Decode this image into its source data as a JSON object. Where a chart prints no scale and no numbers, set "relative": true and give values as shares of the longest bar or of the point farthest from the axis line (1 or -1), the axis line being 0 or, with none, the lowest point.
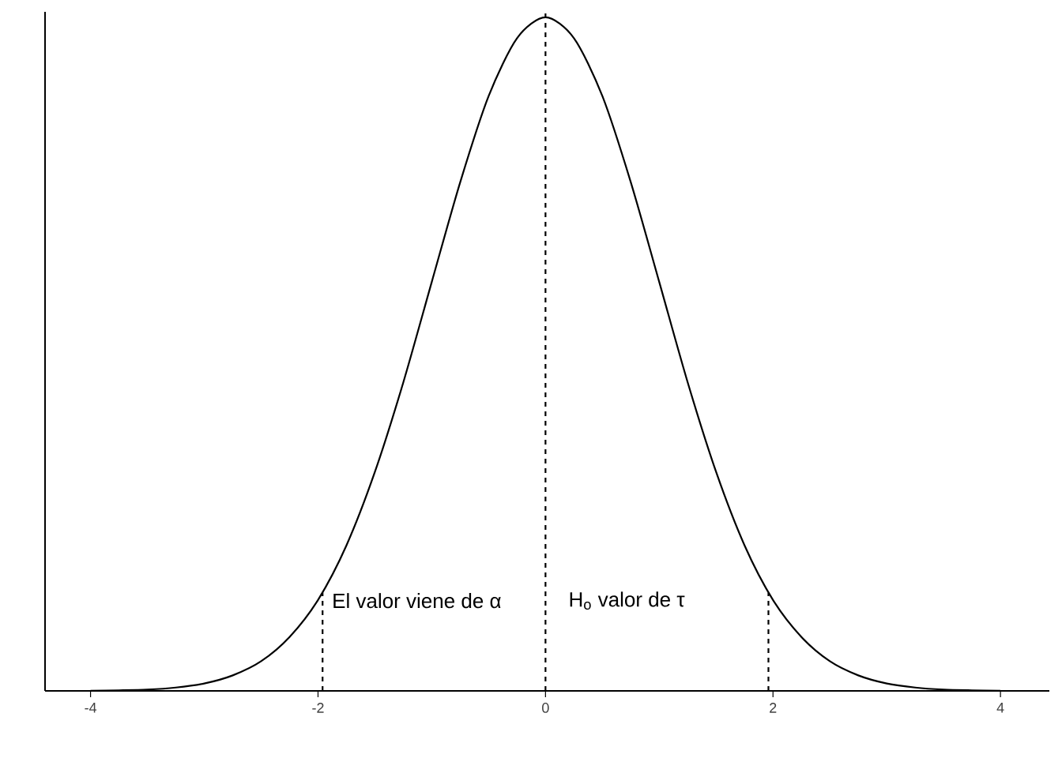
{
  "chart_data": {
    "type": "line",
    "relative": true,
    "tick_labels": "x",
    "xlim": [
      -4.4,
      4.43
    ],
    "xticks": [
      -4,
      -2,
      0,
      2,
      4
    ],
    "series": [
      {
        "color": "#000000",
        "line_style": "solid",
        "x": [
          -4,
          -3.75,
          -3.5,
          -3.25,
          -3,
          -2.75,
          -2.5,
          -2.25,
          -2,
          -1.75,
          -1.5,
          -1.25,
          -1,
          -0.75,
          -0.5,
          -0.25,
          0,
          0.25,
          0.5,
          0.75,
          1,
          1.25,
          1.5,
          1.75,
          2,
          2.25,
          2.5,
          2.75,
          3,
          3.25,
          3.5,
          3.75,
          4
        ],
        "values": [
          0.0003,
          0.0009,
          0.002,
          0.005,
          0.011,
          0.023,
          0.044,
          0.08,
          0.135,
          0.216,
          0.325,
          0.458,
          0.607,
          0.755,
          0.883,
          0.969,
          1,
          0.969,
          0.883,
          0.755,
          0.607,
          0.458,
          0.325,
          0.216,
          0.135,
          0.08,
          0.044,
          0.023,
          0.011,
          0.005,
          0.002,
          0.0009,
          0.0003
        ]
      },
      {
        "type": "line",
        "color": "#000000",
        "line_style": "dashed",
        "x": [
          -1.96,
          -1.96,
          0,
          1.96,
          1.96
        ],
        "values": [
          0,
          0.146,
          null,
          0,
          0.146
        ]
      }
    ],
    "ref_lines": [
      {
        "axis": "x",
        "value": 0,
        "color": "#000000",
        "line_style": "dashed"
      }
    ],
    "annotations": [
      "El valor viene de  α",
      "H$_{o}$  valor de  τ"
    ]
  }
}
